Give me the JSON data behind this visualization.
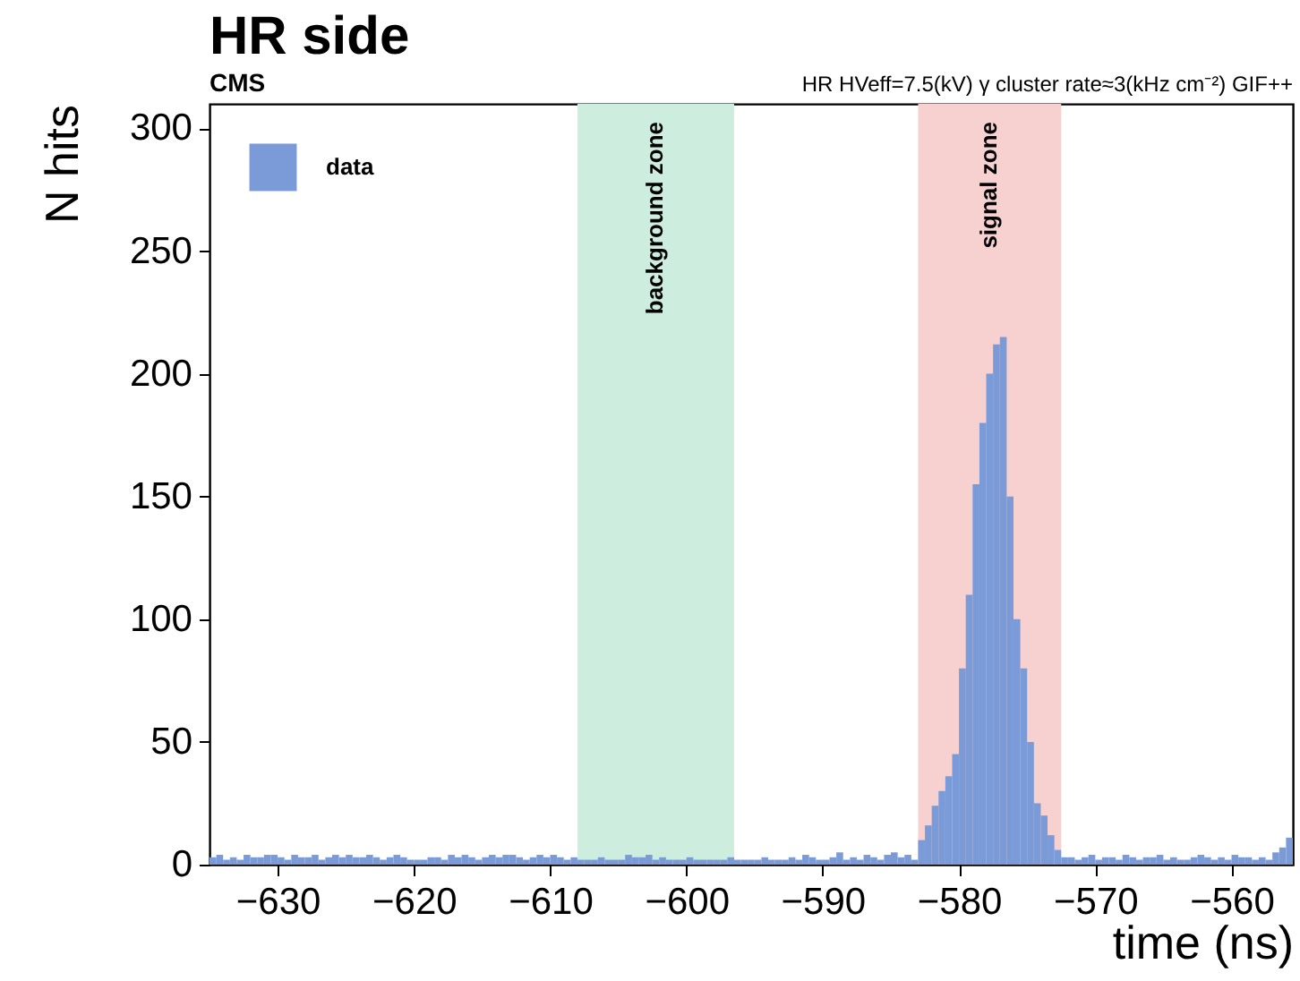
{
  "chart_data": {
    "type": "histogram",
    "title": "HR side",
    "xlabel": "time (ns)",
    "ylabel": "N hits",
    "annotations": [
      "CMS",
      "HR HVeff=7.5(kV) γ cluster rate≈3(kHz cm⁻²) GIF++"
    ],
    "bins": [
      -635,
      -634.5,
      -634,
      -633.5,
      -633,
      -632.5,
      -632,
      -631.5,
      -631,
      -630.5,
      -630,
      -629.5,
      -629,
      -628.5,
      -628,
      -627.5,
      -627,
      -626.5,
      -626,
      -625.5,
      -625,
      -624.5,
      -624,
      -623.5,
      -623,
      -622.5,
      -622,
      -621.5,
      -621,
      -620.5,
      -620,
      -619.5,
      -619,
      -618.5,
      -618,
      -617.5,
      -617,
      -616.5,
      -616,
      -615.5,
      -615,
      -614.5,
      -614,
      -613.5,
      -613,
      -612.5,
      -612,
      -611.5,
      -611,
      -610.5,
      -610,
      -609.5,
      -609,
      -608.5,
      -608,
      -607.5,
      -607,
      -606.5,
      -606,
      -605.5,
      -605,
      -604.5,
      -604,
      -603.5,
      -603,
      -602.5,
      -602,
      -601.5,
      -601,
      -600.5,
      -600,
      -599.5,
      -599,
      -598.5,
      -598,
      -597.5,
      -597,
      -596.5,
      -596,
      -595.5,
      -595,
      -594.5,
      -594,
      -593.5,
      -593,
      -592.5,
      -592,
      -591.5,
      -591,
      -590.5,
      -590,
      -589.5,
      -589,
      -588.5,
      -588,
      -587.5,
      -587,
      -586.5,
      -586,
      -585.5,
      -585,
      -584.5,
      -584,
      -583.5,
      -583,
      -582.5,
      -582,
      -581.5,
      -581,
      -580.5,
      -580,
      -579.5,
      -579,
      -578.5,
      -578,
      -577.5,
      -577,
      -576.5,
      -576,
      -575.5,
      -575,
      -574.5,
      -574,
      -573.5,
      -573,
      -572.5,
      -572,
      -571.5,
      -571,
      -570.5,
      -570,
      -569.5,
      -569,
      -568.5,
      -568,
      -567.5,
      -567,
      -566.5,
      -566,
      -565.5,
      -565,
      -564.5,
      -564,
      -563.5,
      -563,
      -562.5,
      -562,
      -561.5,
      -561,
      -560.5,
      -560,
      -559.5,
      -559,
      -558.5,
      -558,
      -557.5,
      -557,
      -556.5,
      -556,
      -555.5
    ],
    "series": [
      {
        "name": "data",
        "color": "#7b9bd8",
        "values": [
          3,
          4,
          2,
          3,
          2,
          4,
          3,
          3,
          4,
          4,
          3,
          2,
          4,
          3,
          3,
          4,
          2,
          3,
          4,
          3,
          4,
          3,
          3,
          4,
          3,
          2,
          3,
          4,
          3,
          2,
          2,
          2,
          3,
          3,
          2,
          4,
          3,
          4,
          3,
          2,
          3,
          4,
          3,
          4,
          4,
          3,
          2,
          3,
          4,
          3,
          4,
          3,
          2,
          3,
          2,
          2,
          2,
          3,
          2,
          2,
          2,
          4,
          3,
          3,
          4,
          2,
          3,
          2,
          2,
          2,
          3,
          2,
          2,
          2,
          2,
          2,
          3,
          2,
          2,
          2,
          2,
          3,
          2,
          2,
          2,
          3,
          2,
          4,
          3,
          2,
          2,
          3,
          5,
          2,
          3,
          2,
          4,
          3,
          2,
          4,
          5,
          3,
          4,
          2,
          10,
          16,
          24,
          30,
          36,
          45,
          80,
          110,
          155,
          180,
          200,
          212,
          215,
          150,
          100,
          80,
          50,
          25,
          20,
          12,
          6,
          3,
          3,
          2,
          3,
          4,
          2,
          3,
          3,
          2,
          4,
          3,
          2,
          3,
          3,
          4,
          2,
          3,
          2,
          2,
          3,
          4,
          3,
          2,
          3,
          2,
          4,
          3,
          3,
          2,
          3,
          2,
          5,
          7,
          11
        ]
      }
    ],
    "bands": [
      {
        "axis": "x",
        "from": -608,
        "to": -596.5,
        "label": "background zone",
        "color": "#cdeedf"
      },
      {
        "axis": "x",
        "from": -583,
        "to": -572.5,
        "label": "signal zone",
        "color": "#f7d0d0"
      }
    ],
    "xlim": [
      -635,
      -555.5
    ],
    "ylim": [
      0,
      310
    ],
    "xticks": [
      -630,
      -620,
      -610,
      -600,
      -590,
      -580,
      -570,
      -560
    ],
    "yticks": [
      0,
      50,
      100,
      150,
      200,
      250,
      300
    ],
    "grid": false,
    "legend": "top left"
  }
}
